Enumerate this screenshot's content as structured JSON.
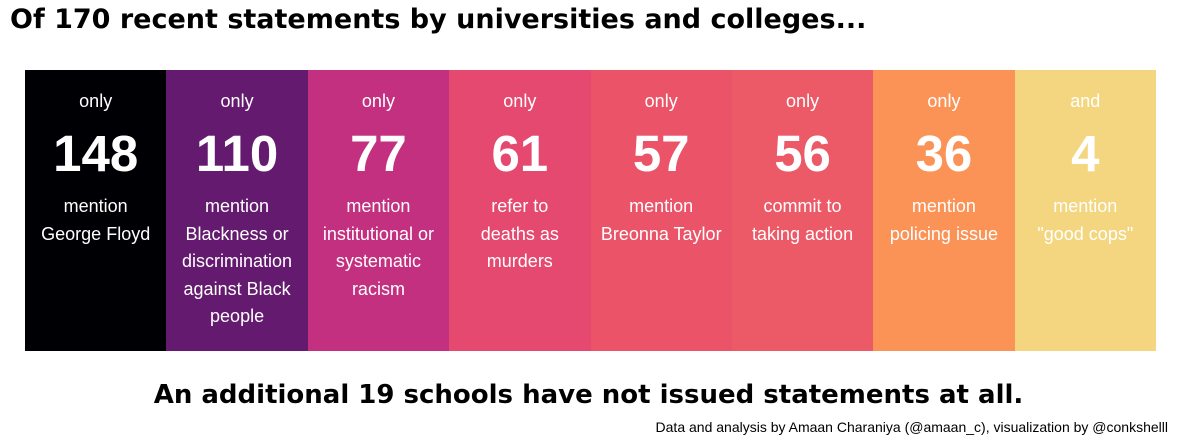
{
  "chart_data": {
    "type": "table",
    "title": "Of 170 recent statements by universities and colleges...",
    "total_statements": 170,
    "categories": [
      {
        "prefix": "only",
        "value": 148,
        "label": "mention\nGeorge Floyd",
        "color": "#000004"
      },
      {
        "prefix": "only",
        "value": 110,
        "label": "mention\nBlackness or\ndiscrimination\nagainst Black\npeople",
        "color": "#641a6e"
      },
      {
        "prefix": "only",
        "value": 77,
        "label": "mention\ninstitutional or\nsystematic\nracism",
        "color": "#c3307f"
      },
      {
        "prefix": "only",
        "value": 61,
        "label": "refer to\ndeaths as\nmurders",
        "color": "#e5496f"
      },
      {
        "prefix": "only",
        "value": 57,
        "label": "mention\nBreonna Taylor",
        "color": "#eb5468"
      },
      {
        "prefix": "only",
        "value": 56,
        "label": "commit to\ntaking action",
        "color": "#ec5a67"
      },
      {
        "prefix": "only",
        "value": 36,
        "label": "mention\npolicing issue",
        "color": "#fb9256"
      },
      {
        "prefix": "and",
        "value": 4,
        "label": "mention\n\"good cops\"",
        "color": "#f3d67f"
      }
    ],
    "footer": "An additional 19 schools have not issued statements at all.",
    "credit": "Data and analysis by Amaan Charaniya (@amaan_c), visualization by @conkshelll"
  }
}
